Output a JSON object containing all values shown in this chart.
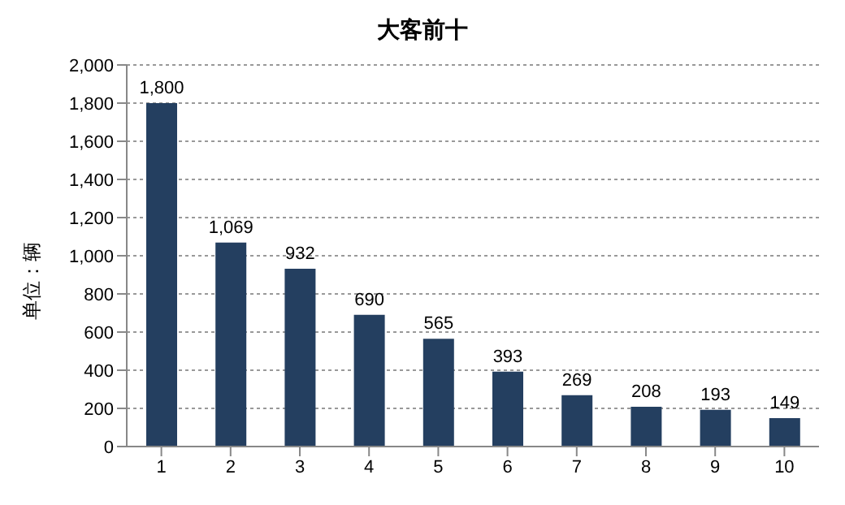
{
  "chart_data": {
    "type": "bar",
    "title": "大客前十",
    "ylabel": "单位：辆",
    "categories": [
      "1",
      "2",
      "3",
      "4",
      "5",
      "6",
      "7",
      "8",
      "9",
      "10"
    ],
    "values": [
      1800,
      1069,
      932,
      690,
      565,
      393,
      269,
      208,
      193,
      149
    ],
    "value_labels": [
      "1,800",
      "1,069",
      "932",
      "690",
      "565",
      "393",
      "269",
      "208",
      "193",
      "149"
    ],
    "color": "#243f60",
    "ylim": [
      0,
      2000
    ],
    "yticks": [
      {
        "value": 0,
        "label": "0"
      },
      {
        "value": 200,
        "label": "200"
      },
      {
        "value": 400,
        "label": "400"
      },
      {
        "value": 600,
        "label": "600"
      },
      {
        "value": 800,
        "label": "800"
      },
      {
        "value": 1000,
        "label": "1,000"
      },
      {
        "value": 1200,
        "label": "1,200"
      },
      {
        "value": 1400,
        "label": "1,400"
      },
      {
        "value": 1600,
        "label": "1,600"
      },
      {
        "value": 1800,
        "label": "1,800"
      },
      {
        "value": 2000,
        "label": "2,000"
      }
    ],
    "grid": "y"
  }
}
